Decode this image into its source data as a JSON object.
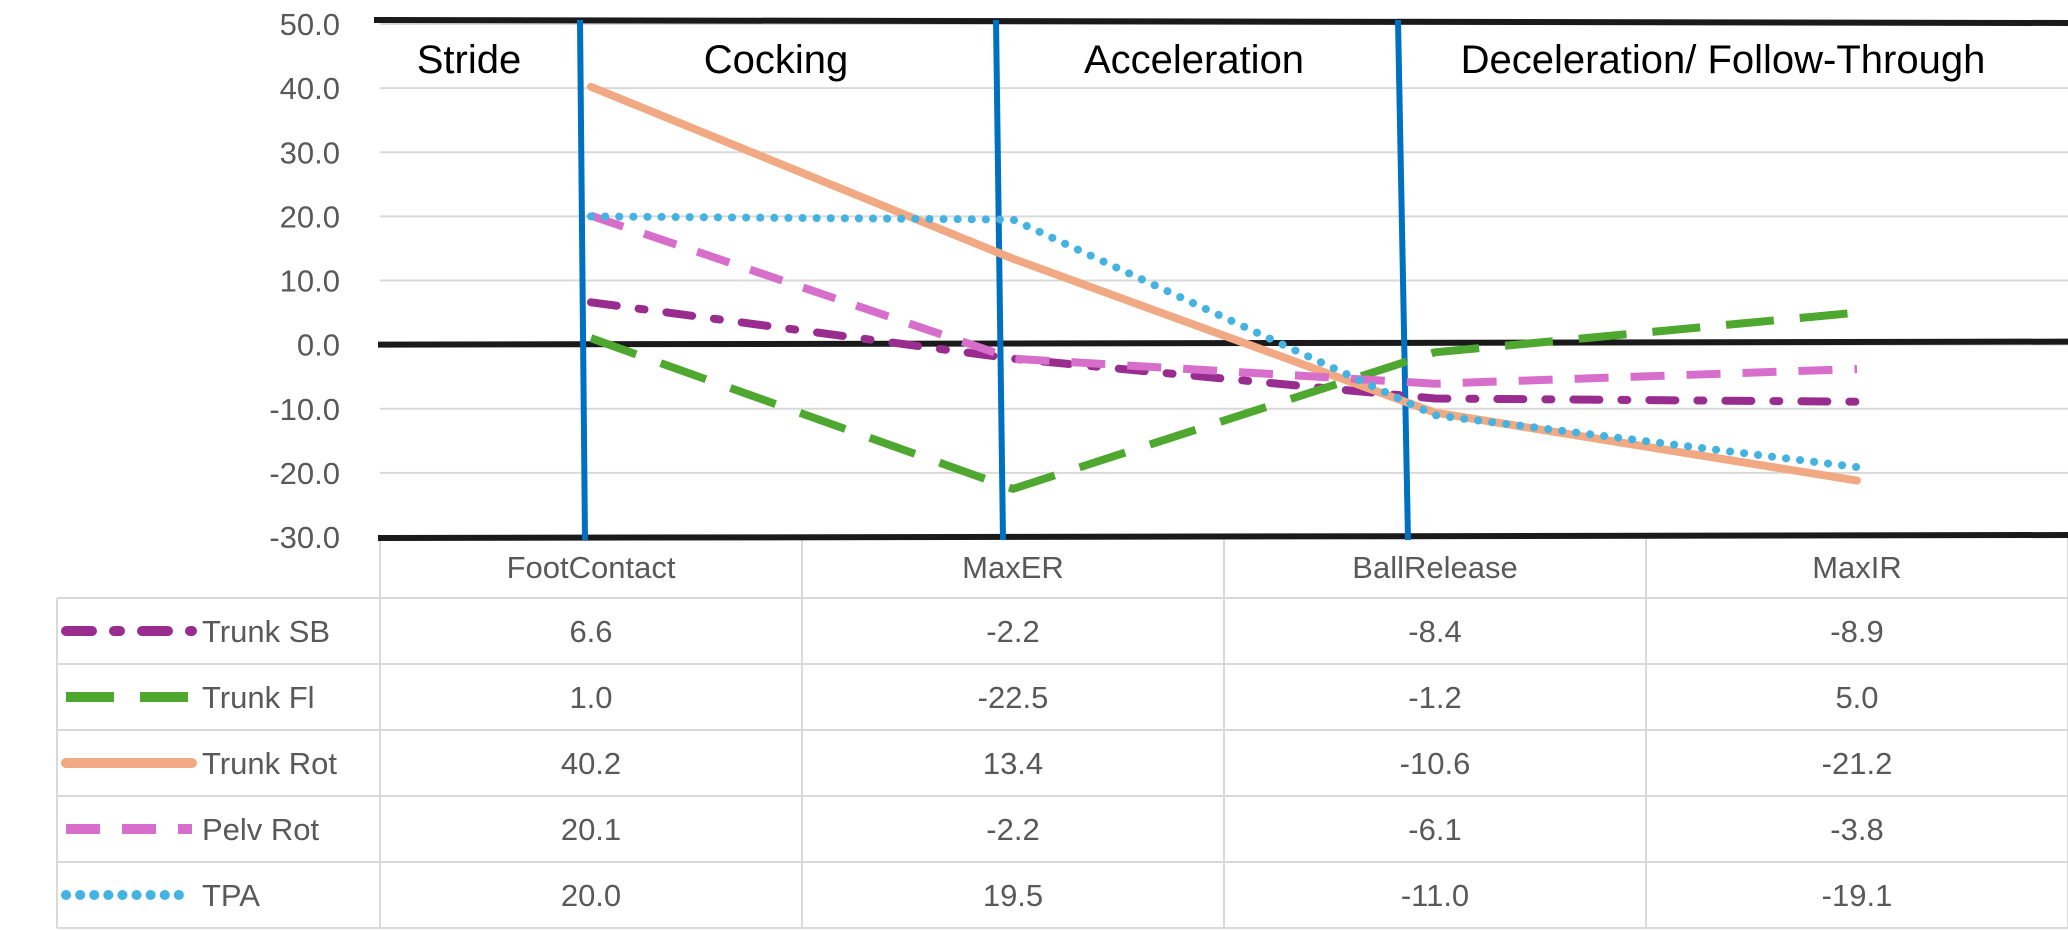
{
  "chart_data": {
    "type": "line",
    "categories": [
      "FootContact",
      "MaxER",
      "BallRelease",
      "MaxIR"
    ],
    "ylim": [
      -30,
      50
    ],
    "yticks": [
      "50.0",
      "40.0",
      "30.0",
      "20.0",
      "10.0",
      "0.0",
      "-10.0",
      "-20.0",
      "-30.0"
    ],
    "grid": true,
    "phases": [
      "Stride",
      "Cocking",
      "Acceleration",
      "Deceleration/ Follow-Through"
    ],
    "series": [
      {
        "name": "Trunk SB",
        "values": [
          6.6,
          -2.2,
          -8.4,
          -8.9
        ],
        "labels": [
          "6.6",
          "-2.2",
          "-8.4",
          "-8.9"
        ],
        "color": "#992d8f",
        "style": "dash-dot"
      },
      {
        "name": "Trunk Fl",
        "values": [
          1.0,
          -22.5,
          -1.2,
          5.0
        ],
        "labels": [
          "1.0",
          "-22.5",
          "-1.2",
          "5.0"
        ],
        "color": "#4ea72e",
        "style": "long-dash"
      },
      {
        "name": "Trunk Rot",
        "values": [
          40.2,
          13.4,
          -10.6,
          -21.2
        ],
        "labels": [
          "40.2",
          "13.4",
          "-10.6",
          "-21.2"
        ],
        "color": "#f1a983",
        "style": "solid"
      },
      {
        "name": "Pelv Rot",
        "values": [
          20.1,
          -2.2,
          -6.1,
          -3.8
        ],
        "labels": [
          "20.1",
          "-2.2",
          "-6.1",
          "-3.8"
        ],
        "color": "#d86ecc",
        "style": "dash"
      },
      {
        "name": "TPA",
        "values": [
          20.0,
          19.5,
          -11.0,
          -19.1
        ],
        "labels": [
          "20.0",
          "19.5",
          "-11.0",
          "-19.1"
        ],
        "color": "#44b3e1",
        "style": "dot"
      }
    ],
    "colors": {
      "phase_divider": "#0070c0",
      "reference_lines": "#1a1a1a",
      "gridlines": "#d9d9d9",
      "table_borders": "#d9d9d9",
      "text": "#595959"
    }
  }
}
